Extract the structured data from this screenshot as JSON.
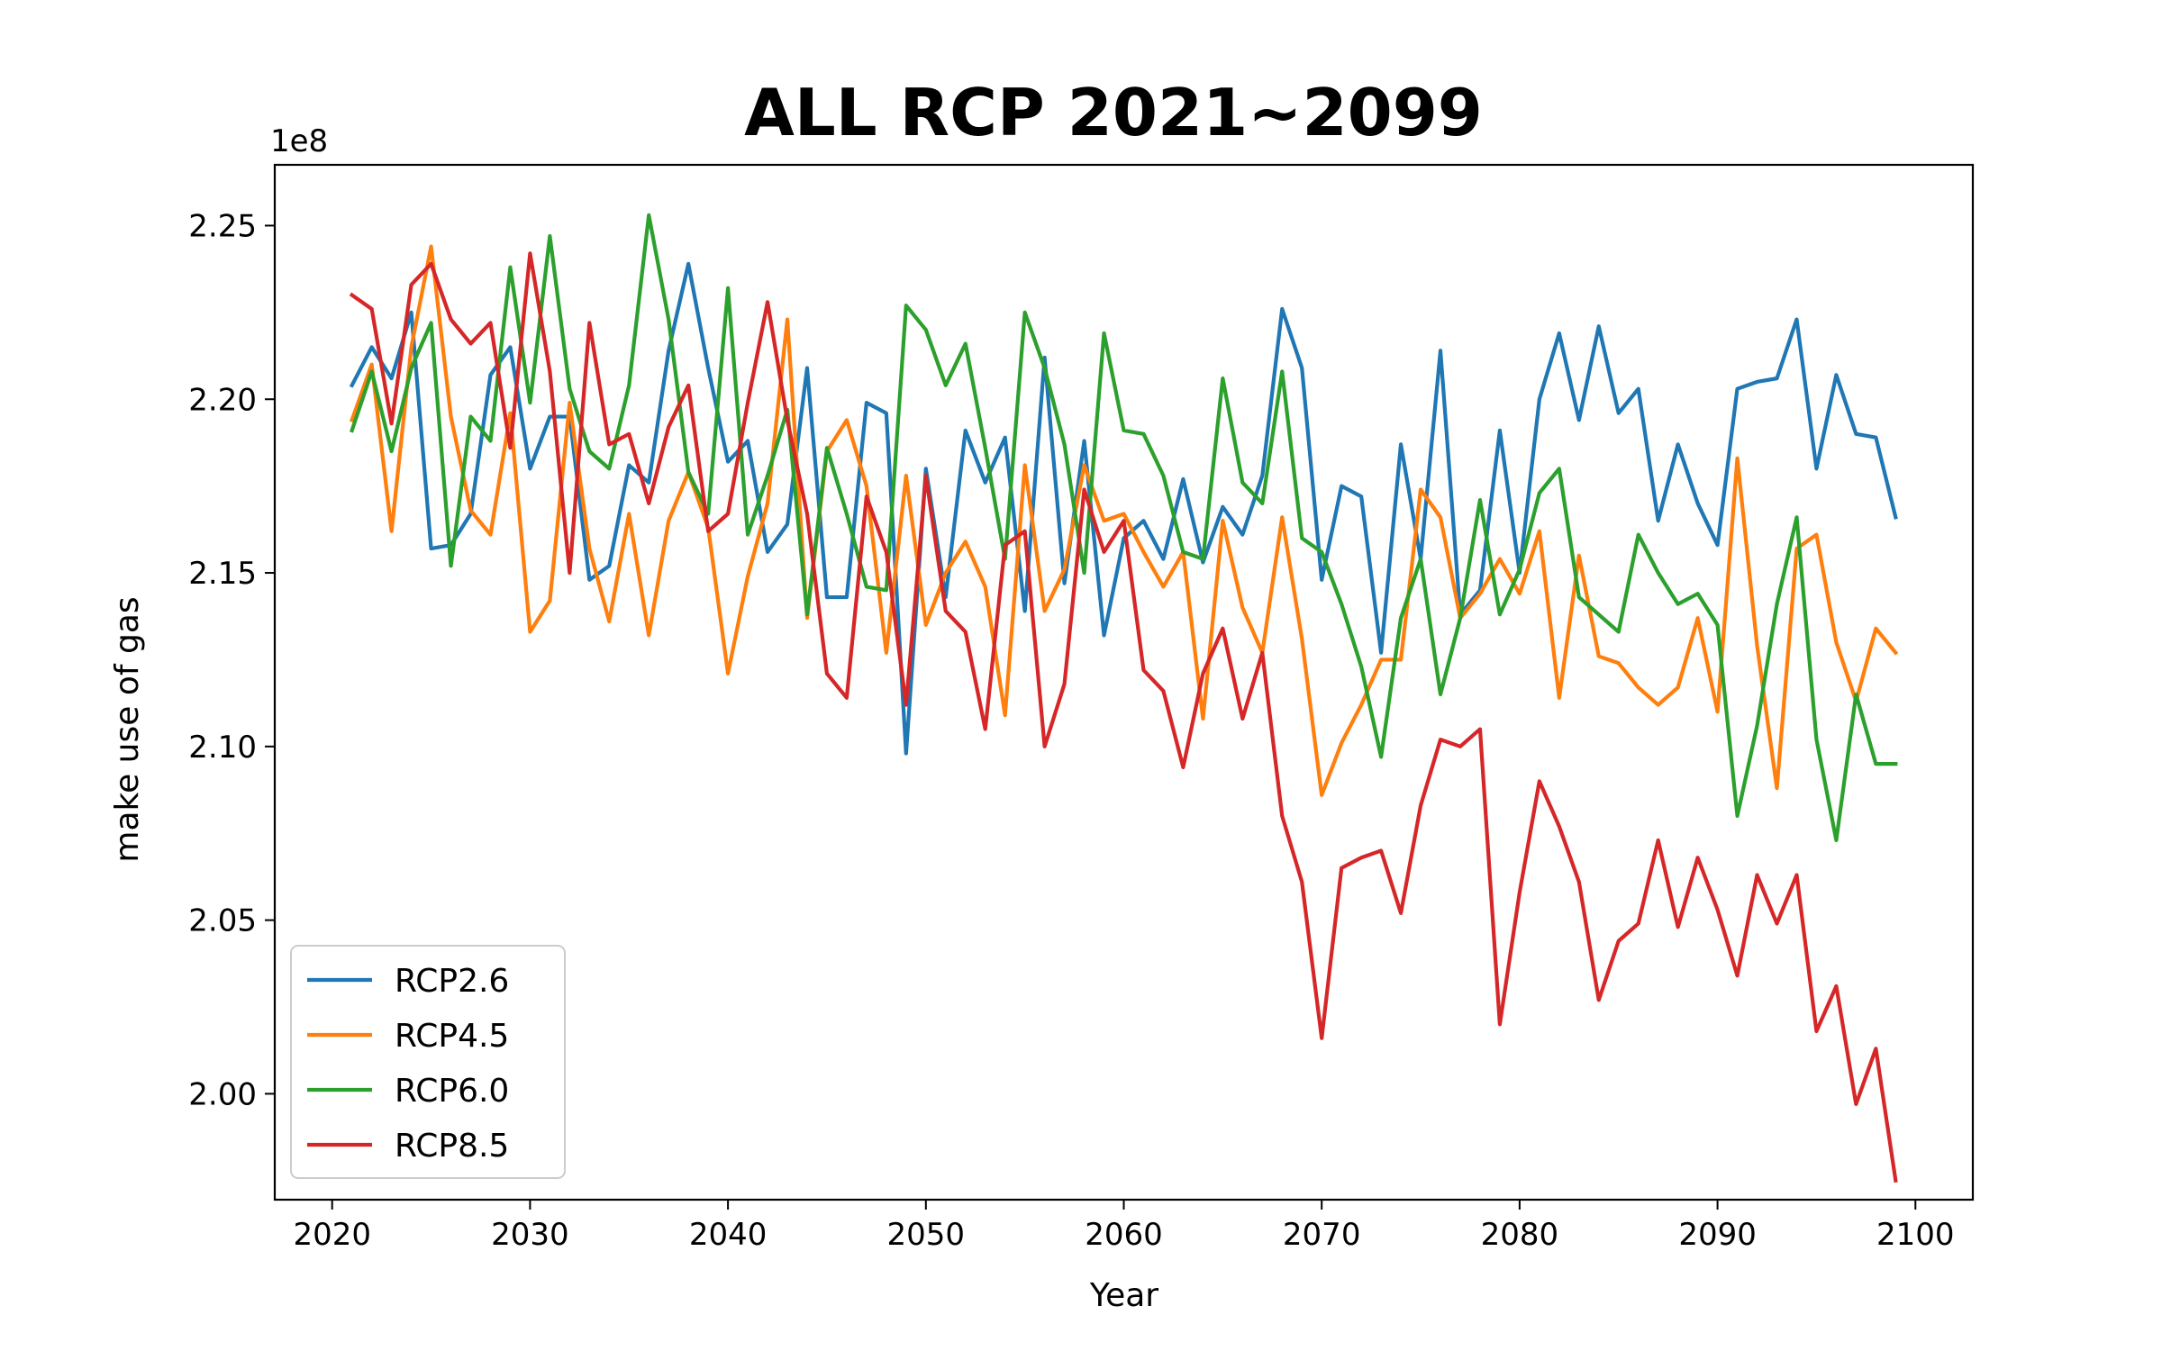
{
  "chart_data": {
    "type": "line",
    "title": "ALL RCP  2021~2099",
    "xlabel": "Year",
    "ylabel": "make use of gas",
    "y_offset_label": "1e8",
    "xlim": [
      2017.1,
      2102.9
    ],
    "ylim": [
      1.9695,
      2.2675
    ],
    "x_ticks": [
      2020,
      2030,
      2040,
      2050,
      2060,
      2070,
      2080,
      2090,
      2100
    ],
    "y_ticks": [
      2.0,
      2.05,
      2.1,
      2.15,
      2.2,
      2.25
    ],
    "y_tick_labels": [
      "2.00",
      "2.05",
      "2.10",
      "2.15",
      "2.20",
      "2.25"
    ],
    "grid": false,
    "legend_position": "lower-left",
    "x_start": 2021,
    "x_end": 2099,
    "series": [
      {
        "name": "RCP2.6",
        "color": "#1f77b4",
        "values": [
          2.204,
          2.215,
          2.206,
          2.225,
          2.157,
          2.158,
          2.167,
          2.207,
          2.215,
          2.18,
          2.195,
          2.195,
          2.148,
          2.152,
          2.181,
          2.176,
          2.214,
          2.239,
          2.209,
          2.182,
          2.188,
          2.156,
          2.164,
          2.209,
          2.143,
          2.143,
          2.199,
          2.196,
          2.098,
          2.18,
          2.143,
          2.191,
          2.176,
          2.189,
          2.139,
          2.212,
          2.147,
          2.188,
          2.132,
          2.16,
          2.165,
          2.154,
          2.177,
          2.153,
          2.169,
          2.161,
          2.178,
          2.226,
          2.209,
          2.148,
          2.175,
          2.172,
          2.127,
          2.187,
          2.154,
          2.214,
          2.138,
          2.145,
          2.191,
          2.15,
          2.2,
          2.219,
          2.194,
          2.221,
          2.196,
          2.203,
          2.165,
          2.187,
          2.17,
          2.158,
          2.203,
          2.205,
          2.206,
          2.223,
          2.18,
          2.207,
          2.19,
          2.189,
          2.166
        ]
      },
      {
        "name": "RCP4.5",
        "color": "#ff7f0e",
        "values": [
          2.194,
          2.21,
          2.162,
          2.215,
          2.244,
          2.195,
          2.168,
          2.161,
          2.196,
          2.133,
          2.142,
          2.199,
          2.157,
          2.136,
          2.167,
          2.132,
          2.165,
          2.179,
          2.163,
          2.121,
          2.149,
          2.17,
          2.223,
          2.137,
          2.185,
          2.194,
          2.175,
          2.127,
          2.178,
          2.135,
          2.15,
          2.159,
          2.146,
          2.109,
          2.181,
          2.139,
          2.151,
          2.181,
          2.165,
          2.167,
          2.156,
          2.146,
          2.156,
          2.108,
          2.165,
          2.14,
          2.127,
          2.166,
          2.131,
          2.086,
          2.101,
          2.112,
          2.125,
          2.125,
          2.174,
          2.166,
          2.137,
          2.144,
          2.154,
          2.144,
          2.162,
          2.114,
          2.155,
          2.126,
          2.124,
          2.117,
          2.112,
          2.117,
          2.137,
          2.11,
          2.183,
          2.129,
          2.088,
          2.157,
          2.161,
          2.13,
          2.113,
          2.134,
          2.127
        ]
      },
      {
        "name": "RCP6.0",
        "color": "#2ca02c",
        "values": [
          2.191,
          2.208,
          2.185,
          2.209,
          2.222,
          2.152,
          2.195,
          2.188,
          2.238,
          2.199,
          2.247,
          2.203,
          2.185,
          2.18,
          2.204,
          2.253,
          2.223,
          2.179,
          2.167,
          2.232,
          2.161,
          2.178,
          2.197,
          2.138,
          2.186,
          2.167,
          2.146,
          2.145,
          2.227,
          2.22,
          2.204,
          2.216,
          2.186,
          2.154,
          2.225,
          2.209,
          2.187,
          2.15,
          2.219,
          2.191,
          2.19,
          2.178,
          2.156,
          2.154,
          2.206,
          2.176,
          2.17,
          2.208,
          2.16,
          2.156,
          2.141,
          2.123,
          2.097,
          2.137,
          2.154,
          2.115,
          2.137,
          2.171,
          2.138,
          2.151,
          2.173,
          2.18,
          2.143,
          2.138,
          2.133,
          2.161,
          2.15,
          2.141,
          2.144,
          2.135,
          2.08,
          2.106,
          2.141,
          2.166,
          2.102,
          2.073,
          2.115,
          2.095,
          2.095
        ]
      },
      {
        "name": "RCP8.5",
        "color": "#d62728",
        "values": [
          2.23,
          2.226,
          2.193,
          2.233,
          2.239,
          2.223,
          2.216,
          2.222,
          2.186,
          2.242,
          2.208,
          2.15,
          2.222,
          2.187,
          2.19,
          2.17,
          2.192,
          2.204,
          2.162,
          2.167,
          2.199,
          2.228,
          2.194,
          2.167,
          2.121,
          2.114,
          2.172,
          2.156,
          2.112,
          2.178,
          2.139,
          2.133,
          2.105,
          2.158,
          2.162,
          2.1,
          2.118,
          2.174,
          2.156,
          2.165,
          2.122,
          2.116,
          2.094,
          2.121,
          2.134,
          2.108,
          2.127,
          2.08,
          2.061,
          2.016,
          2.065,
          2.068,
          2.07,
          2.052,
          2.083,
          2.102,
          2.1,
          2.105,
          2.02,
          2.058,
          2.09,
          2.077,
          2.061,
          2.027,
          2.044,
          2.049,
          2.073,
          2.048,
          2.068,
          2.053,
          2.034,
          2.063,
          2.049,
          2.063,
          2.018,
          2.031,
          1.997,
          2.013,
          1.975
        ]
      }
    ]
  }
}
